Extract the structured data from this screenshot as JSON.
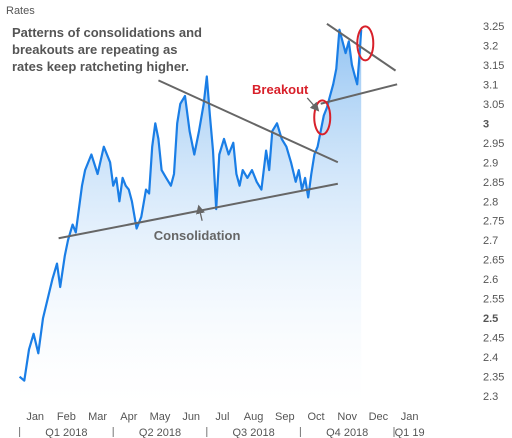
{
  "chart_data": {
    "type": "area",
    "ylabel": "Rates",
    "ylim": [
      2.28,
      3.27
    ],
    "y_ticks": [
      {
        "value": 2.3,
        "label": "2.3"
      },
      {
        "value": 2.35,
        "label": "2.35"
      },
      {
        "value": 2.4,
        "label": "2.4"
      },
      {
        "value": 2.45,
        "label": "2.45"
      },
      {
        "value": 2.5,
        "label": "2.5",
        "bold": true
      },
      {
        "value": 2.55,
        "label": "2.55"
      },
      {
        "value": 2.6,
        "label": "2.6"
      },
      {
        "value": 2.65,
        "label": "2.65"
      },
      {
        "value": 2.7,
        "label": "2.7"
      },
      {
        "value": 2.75,
        "label": "2.75"
      },
      {
        "value": 2.8,
        "label": "2.8"
      },
      {
        "value": 2.85,
        "label": "2.85"
      },
      {
        "value": 2.9,
        "label": "2.9"
      },
      {
        "value": 2.95,
        "label": "2.95"
      },
      {
        "value": 3.0,
        "label": "3",
        "bold": true
      },
      {
        "value": 3.05,
        "label": "3.05"
      },
      {
        "value": 3.1,
        "label": "3.1"
      },
      {
        "value": 3.15,
        "label": "3.15"
      },
      {
        "value": 3.2,
        "label": "3.2"
      },
      {
        "value": 3.25,
        "label": "3.25"
      }
    ],
    "xlim": [
      -0.5,
      14.5
    ],
    "x_months": [
      "Jan",
      "Feb",
      "Mar",
      "Apr",
      "May",
      "Jun",
      "Jul",
      "Aug",
      "Sep",
      "Oct",
      "Nov",
      "Dec",
      "Jan"
    ],
    "x_quarters": [
      {
        "label": "Q1 2018",
        "x": 1.5
      },
      {
        "label": "Q2 2018",
        "x": 4.5
      },
      {
        "label": "Q3 2018",
        "x": 7.5
      },
      {
        "label": "Q4 2018",
        "x": 10.5
      },
      {
        "label": "Q1 19",
        "x": 12.5
      }
    ],
    "quarter_separators": [
      0,
      3,
      6,
      9,
      12
    ],
    "series": [
      {
        "x": [
          0.0,
          0.15,
          0.3,
          0.45,
          0.6,
          0.75,
          0.9,
          1.05,
          1.2,
          1.3,
          1.45,
          1.55,
          1.7,
          1.8,
          2.0,
          2.1,
          2.3,
          2.5,
          2.7,
          2.9,
          3.0,
          3.1,
          3.2,
          3.3,
          3.4,
          3.5,
          3.6,
          3.75,
          3.9,
          4.05,
          4.15,
          4.25,
          4.35,
          4.45,
          4.55,
          4.7,
          4.85,
          4.95,
          5.05,
          5.15,
          5.3,
          5.45,
          5.6,
          5.75,
          5.9,
          6.0,
          6.1,
          6.2,
          6.3,
          6.4,
          6.55,
          6.7,
          6.85,
          6.95,
          7.05,
          7.15,
          7.3,
          7.45,
          7.6,
          7.75,
          7.9,
          8.0,
          8.1,
          8.25,
          8.4,
          8.55,
          8.7,
          8.85,
          8.95,
          9.05,
          9.15,
          9.25,
          9.35,
          9.45,
          9.55,
          9.65,
          9.75,
          9.85,
          9.95,
          10.05,
          10.15,
          10.25,
          10.35,
          10.45,
          10.55,
          10.65,
          10.75,
          10.82,
          10.88,
          10.95
        ],
        "values": [
          2.35,
          2.34,
          2.42,
          2.46,
          2.41,
          2.5,
          2.55,
          2.6,
          2.64,
          2.58,
          2.66,
          2.7,
          2.74,
          2.72,
          2.84,
          2.88,
          2.92,
          2.87,
          2.94,
          2.9,
          2.84,
          2.86,
          2.8,
          2.86,
          2.84,
          2.83,
          2.8,
          2.73,
          2.76,
          2.83,
          2.82,
          2.94,
          3.0,
          2.96,
          2.88,
          2.86,
          2.84,
          2.87,
          3.0,
          3.05,
          3.07,
          2.98,
          2.92,
          2.98,
          3.05,
          3.12,
          3.02,
          2.93,
          2.78,
          2.92,
          2.96,
          2.92,
          2.95,
          2.87,
          2.84,
          2.88,
          2.86,
          2.88,
          2.85,
          2.83,
          2.93,
          2.88,
          2.98,
          3.0,
          2.96,
          2.94,
          2.9,
          2.85,
          2.88,
          2.83,
          2.86,
          2.81,
          2.87,
          2.92,
          2.94,
          2.98,
          3.02,
          3.04,
          3.07,
          3.1,
          3.14,
          3.24,
          3.21,
          3.18,
          3.21,
          3.15,
          3.12,
          3.1,
          3.16,
          3.24
        ]
      }
    ],
    "overlays": {
      "lines": [
        {
          "x1": 1.25,
          "y1": 2.705,
          "x2": 10.2,
          "y2": 2.845
        },
        {
          "x1": 4.45,
          "y1": 3.11,
          "x2": 10.2,
          "y2": 2.9
        },
        {
          "x1": 9.65,
          "y1": 3.05,
          "x2": 12.1,
          "y2": 3.1
        },
        {
          "x1": 9.85,
          "y1": 3.255,
          "x2": 12.05,
          "y2": 3.135
        }
      ],
      "circles": [
        {
          "x": 9.7,
          "y": 3.015
        },
        {
          "x": 11.08,
          "y": 3.205
        }
      ],
      "arrows": [
        {
          "x1": 9.22,
          "y1": 3.065,
          "x2": 9.55,
          "y2": 3.035
        },
        {
          "x1": 5.85,
          "y1": 2.75,
          "x2": 5.75,
          "y2": 2.785
        }
      ],
      "labels": [
        {
          "text": "Breakout",
          "x": 7.45,
          "y": 3.075,
          "color": "#d8202a"
        },
        {
          "text": "Consolidation",
          "x": 4.3,
          "y": 2.7,
          "color": "#666666"
        }
      ]
    },
    "annotation": "Patterns of consolidations and breakouts are repeating as rates keep ratcheting higher.",
    "colors": {
      "line": "#1a7ee6",
      "fill_top": "#8ec1f2",
      "fill_bottom": "#ffffff",
      "trend": "#666666",
      "highlight": "#d8202a",
      "axis_text": "#555555"
    }
  }
}
